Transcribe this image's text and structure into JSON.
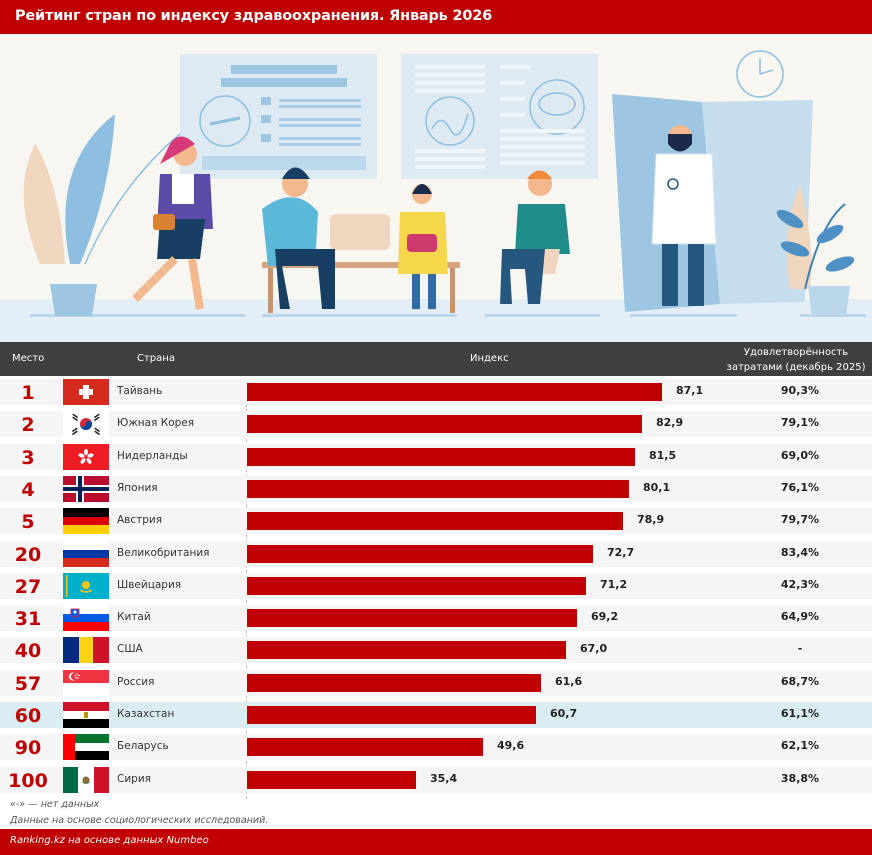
{
  "header": {
    "title": "Рейтинг стран по индексу здравоохранения. Январь 2026"
  },
  "table": {
    "columns": {
      "place": "Место",
      "country": "Страна",
      "index": "Индекс",
      "satisfaction_line1": "Удовлетворённость",
      "satisfaction_line2": "затратами (декабрь 2025)"
    },
    "rows": [
      {
        "rank": "1",
        "country": "Тайвань",
        "flag": "switzerland-flag",
        "index": "87,1",
        "index_num": 87.1,
        "satisfaction": "90,3%",
        "highlight": false
      },
      {
        "rank": "2",
        "country": "Южная Корея",
        "flag": "south-korea-flag",
        "index": "82,9",
        "index_num": 82.9,
        "satisfaction": "79,1%",
        "highlight": false
      },
      {
        "rank": "3",
        "country": "Нидерланды",
        "flag": "hong-kong-flag",
        "index": "81,5",
        "index_num": 81.5,
        "satisfaction": "69,0%",
        "highlight": false
      },
      {
        "rank": "4",
        "country": "Япония",
        "flag": "norway-flag",
        "index": "80,1",
        "index_num": 80.1,
        "satisfaction": "76,1%",
        "highlight": false
      },
      {
        "rank": "5",
        "country": "Австрия",
        "flag": "germany-flag",
        "index": "78,9",
        "index_num": 78.9,
        "satisfaction": "79,7%",
        "highlight": false
      },
      {
        "rank": "20",
        "country": "Великобритания",
        "flag": "russia-flag",
        "index": "72,7",
        "index_num": 72.7,
        "satisfaction": "83,4%",
        "highlight": false
      },
      {
        "rank": "27",
        "country": "Швейцария",
        "flag": "kazakhstan-flag",
        "index": "71,2",
        "index_num": 71.2,
        "satisfaction": "42,3%",
        "highlight": false
      },
      {
        "rank": "31",
        "country": "Китай",
        "flag": "slovenia-flag",
        "index": "69,2",
        "index_num": 69.2,
        "satisfaction": "64,9%",
        "highlight": false
      },
      {
        "rank": "40",
        "country": "США",
        "flag": "romania-flag",
        "index": "67,0",
        "index_num": 67.0,
        "satisfaction": "-",
        "highlight": false
      },
      {
        "rank": "57",
        "country": "Россия",
        "flag": "singapore-flag",
        "index": "61,6",
        "index_num": 61.6,
        "satisfaction": "68,7%",
        "highlight": false
      },
      {
        "rank": "60",
        "country": "Казахстан",
        "flag": "egypt-flag",
        "index": "60,7",
        "index_num": 60.7,
        "satisfaction": "61,1%",
        "highlight": true
      },
      {
        "rank": "90",
        "country": "Беларусь",
        "flag": "uae-flag",
        "index": "49,6",
        "index_num": 49.6,
        "satisfaction": "62,1%",
        "highlight": false
      },
      {
        "rank": "100",
        "country": "Сирия",
        "flag": "mexico-flag",
        "index": "35,4",
        "index_num": 35.4,
        "satisfaction": "38,8%",
        "highlight": false
      }
    ]
  },
  "notes": {
    "line1": "«-» — нет данных",
    "line2": "Данные на основе социологических исследований."
  },
  "footer": {
    "source": "Ranking.kz на основе данных Numbeo"
  },
  "colors": {
    "brand_red": "#c00000",
    "header_gray": "#404040",
    "row_bg": "#f5f5f5",
    "highlight_row": "#daedf3"
  },
  "chart_data": {
    "type": "bar",
    "orientation": "horizontal",
    "title": "Рейтинг стран по индексу здравоохранения. Январь 2026",
    "xlabel": "Индекс",
    "ylabel": "Страна",
    "categories": [
      "Тайвань",
      "Южная Корея",
      "Нидерланды",
      "Япония",
      "Австрия",
      "Великобритания",
      "Швейцария",
      "Китай",
      "США",
      "Россия",
      "Казахстан",
      "Беларусь",
      "Сирия"
    ],
    "ranks": [
      1,
      2,
      3,
      4,
      5,
      20,
      27,
      31,
      40,
      57,
      60,
      90,
      100
    ],
    "series": [
      {
        "name": "Индекс",
        "values": [
          87.1,
          82.9,
          81.5,
          80.1,
          78.9,
          72.7,
          71.2,
          69.2,
          67.0,
          61.6,
          60.7,
          49.6,
          35.4
        ]
      },
      {
        "name": "Удовлетворённость затратами (декабрь 2025), %",
        "values": [
          90.3,
          79.1,
          69.0,
          76.1,
          79.7,
          83.4,
          42.3,
          64.9,
          null,
          68.7,
          61.1,
          62.1,
          38.8
        ]
      }
    ],
    "highlighted_category": "Казахстан",
    "xlim": [
      0,
      100
    ],
    "grid": false,
    "legend": "none",
    "annotations": [
      "«-» — нет данных",
      "Данные на основе социологических исследований.",
      "Ranking.kz на основе данных Numbeo"
    ]
  }
}
